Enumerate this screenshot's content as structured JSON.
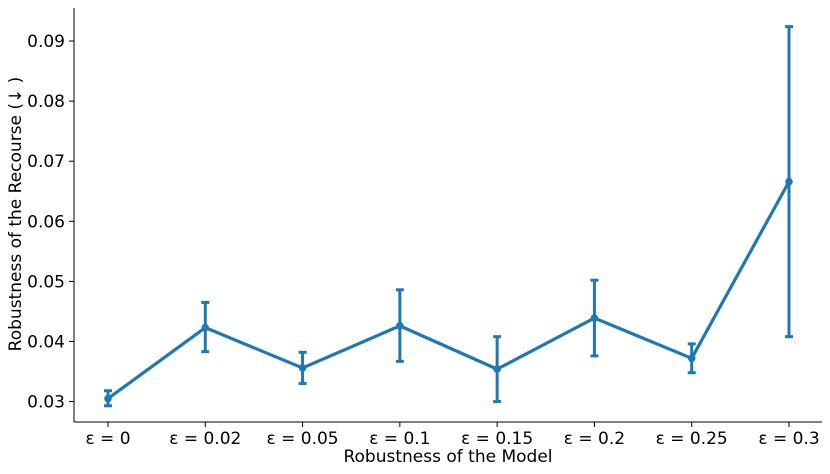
{
  "chart_data": {
    "type": "line",
    "title": "",
    "xlabel": "Robustness of the Model",
    "ylabel": "Robustness of the Recourse (↓ )",
    "categories": [
      "ε = 0",
      "ε = 0.02",
      "ε = 0.05",
      "ε = 0.1",
      "ε = 0.15",
      "ε = 0.2",
      "ε = 0.25",
      "ε = 0.3"
    ],
    "series": [
      {
        "values": [
          0.0305,
          0.0423,
          0.0356,
          0.0426,
          0.0354,
          0.0439,
          0.0372,
          0.0666
        ],
        "err_low": [
          0.0293,
          0.0383,
          0.033,
          0.0367,
          0.03,
          0.0376,
          0.0348,
          0.0408
        ],
        "err_high": [
          0.0318,
          0.0465,
          0.0382,
          0.0486,
          0.0408,
          0.0502,
          0.0396,
          0.0924
        ]
      }
    ],
    "yticks": [
      "0.03",
      "0.04",
      "0.05",
      "0.06",
      "0.07",
      "0.08",
      "0.09"
    ],
    "ylim": [
      0.0266,
      0.0955
    ],
    "color": "#1f77b4",
    "grid": false,
    "legend": "none"
  }
}
